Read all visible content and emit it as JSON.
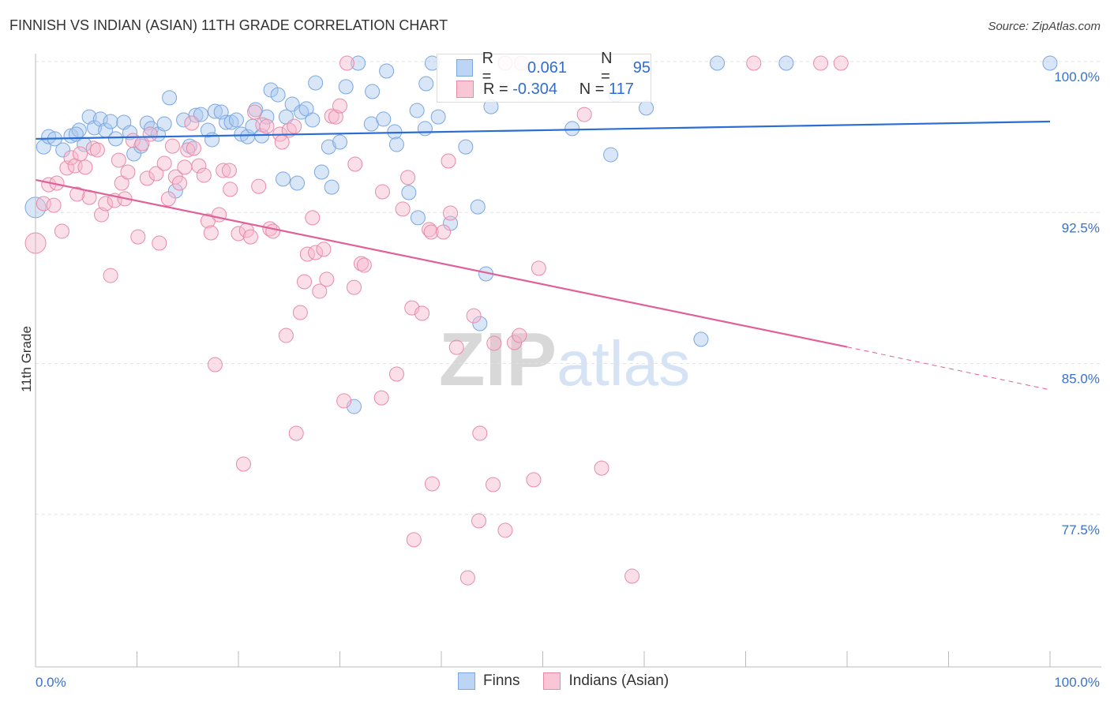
{
  "chart_data": {
    "type": "scatter",
    "title": "FINNISH VS INDIAN (ASIAN) 11TH GRADE CORRELATION CHART",
    "source": "Source: ZipAtlas.com",
    "xlabel": "",
    "ylabel": "11th Grade",
    "xlim": [
      0,
      100
    ],
    "ylim": [
      71.5,
      100.4
    ],
    "x_tick_labels": [
      "0.0%",
      "100.0%"
    ],
    "y_ticks": [
      100,
      92.5,
      85,
      77.5
    ],
    "y_tick_labels": [
      "100.0%",
      "92.5%",
      "85.0%",
      "77.5%"
    ],
    "watermark": "ZIPatlas",
    "legend": [
      {
        "name": "Finns",
        "r_label": "R =",
        "r": "0.061",
        "n_label": "N =",
        "n": "95",
        "color": "#a9c8f0",
        "stroke": "#7aa7e0"
      },
      {
        "name": "Indians (Asian)",
        "r_label": "R =",
        "r": "-0.304",
        "n_label": "N =",
        "n": "117",
        "color": "#f6b8cb",
        "stroke": "#e88aa8"
      }
    ],
    "series": [
      {
        "name": "Finns",
        "color": "#7aa7e0",
        "trend": {
          "x": [
            0,
            100
          ],
          "y": [
            96.16,
            97.02
          ],
          "color": "#2a6dd3"
        },
        "points": [
          [
            0.8,
            95.76
          ],
          [
            1.3,
            96.27
          ],
          [
            1.9,
            96.16
          ],
          [
            2.7,
            95.61
          ],
          [
            3.5,
            96.31
          ],
          [
            4.3,
            96.59
          ],
          [
            4.0,
            96.39
          ],
          [
            4.8,
            95.88
          ],
          [
            5.3,
            97.25
          ],
          [
            5.8,
            96.71
          ],
          [
            6.4,
            97.14
          ],
          [
            6.9,
            96.59
          ],
          [
            7.4,
            97.02
          ],
          [
            7.9,
            96.16
          ],
          [
            8.7,
            96.98
          ],
          [
            9.3,
            96.47
          ],
          [
            9.7,
            95.41
          ],
          [
            10.4,
            95.8
          ],
          [
            11.0,
            96.94
          ],
          [
            11.4,
            96.67
          ],
          [
            12.1,
            96.39
          ],
          [
            12.7,
            96.9
          ],
          [
            13.2,
            98.2
          ],
          [
            13.8,
            93.57
          ],
          [
            14.6,
            97.1
          ],
          [
            15.2,
            95.8
          ],
          [
            15.8,
            97.33
          ],
          [
            16.3,
            97.37
          ],
          [
            17.0,
            96.59
          ],
          [
            17.4,
            96.12
          ],
          [
            17.7,
            97.53
          ],
          [
            18.3,
            97.49
          ],
          [
            18.8,
            96.98
          ],
          [
            19.3,
            96.98
          ],
          [
            19.8,
            97.1
          ],
          [
            20.3,
            96.39
          ],
          [
            20.9,
            96.27
          ],
          [
            21.4,
            96.78
          ],
          [
            21.7,
            97.61
          ],
          [
            22.3,
            96.31
          ],
          [
            22.8,
            97.25
          ],
          [
            23.2,
            98.59
          ],
          [
            23.9,
            98.35
          ],
          [
            24.4,
            94.16
          ],
          [
            24.7,
            97.25
          ],
          [
            25.3,
            97.88
          ],
          [
            25.8,
            93.96
          ],
          [
            26.2,
            97.49
          ],
          [
            26.7,
            97.65
          ],
          [
            27.3,
            97.1
          ],
          [
            27.6,
            98.94
          ],
          [
            28.2,
            94.51
          ],
          [
            28.9,
            95.76
          ],
          [
            29.2,
            93.76
          ],
          [
            30.0,
            96.0
          ],
          [
            30.6,
            98.75
          ],
          [
            31.4,
            82.86
          ],
          [
            31.8,
            99.92
          ],
          [
            33.1,
            96.9
          ],
          [
            33.2,
            98.51
          ],
          [
            34.3,
            97.14
          ],
          [
            34.6,
            99.53
          ],
          [
            35.4,
            96.51
          ],
          [
            35.6,
            95.88
          ],
          [
            36.8,
            93.49
          ],
          [
            37.6,
            97.57
          ],
          [
            37.7,
            92.24
          ],
          [
            38.4,
            96.67
          ],
          [
            38.5,
            98.9
          ],
          [
            39.1,
            99.92
          ],
          [
            39.7,
            97.25
          ],
          [
            40.9,
            91.96
          ],
          [
            42.4,
            95.76
          ],
          [
            43.6,
            92.78
          ],
          [
            43.8,
            86.98
          ],
          [
            44.4,
            89.45
          ],
          [
            44.9,
            97.76
          ],
          [
            52.9,
            96.67
          ],
          [
            56.7,
            95.37
          ],
          [
            57.2,
            98.35
          ],
          [
            60.2,
            97.69
          ],
          [
            65.6,
            86.2
          ],
          [
            67.2,
            99.92
          ],
          [
            74.0,
            99.92
          ],
          [
            100,
            99.92
          ],
          [
            0,
            92.75
          ]
        ]
      },
      {
        "name": "Indians (Asian)",
        "color": "#e88aa8",
        "trend": {
          "x": [
            0,
            80
          ],
          "y": [
            94.12,
            85.82
          ],
          "dashed_to": [
            100,
            83.69
          ],
          "color": "#e0609a"
        },
        "points": [
          [
            0,
            90.98
          ],
          [
            0.8,
            92.94
          ],
          [
            1.3,
            93.88
          ],
          [
            1.8,
            92.86
          ],
          [
            2.1,
            93.96
          ],
          [
            2.6,
            91.57
          ],
          [
            3.1,
            94.71
          ],
          [
            3.5,
            95.22
          ],
          [
            3.9,
            94.82
          ],
          [
            4.4,
            95.41
          ],
          [
            4.9,
            94.75
          ],
          [
            5.3,
            93.25
          ],
          [
            4.1,
            93.41
          ],
          [
            5.7,
            95.69
          ],
          [
            6.1,
            95.61
          ],
          [
            6.5,
            92.39
          ],
          [
            6.9,
            92.94
          ],
          [
            7.4,
            89.37
          ],
          [
            7.8,
            93.1
          ],
          [
            8.2,
            95.1
          ],
          [
            8.5,
            93.96
          ],
          [
            8.8,
            93.18
          ],
          [
            9.1,
            94.51
          ],
          [
            9.6,
            96.08
          ],
          [
            10.1,
            91.29
          ],
          [
            10.5,
            95.92
          ],
          [
            11.0,
            94.2
          ],
          [
            11.3,
            96.39
          ],
          [
            11.9,
            94.43
          ],
          [
            12.2,
            90.98
          ],
          [
            12.7,
            94.94
          ],
          [
            13.1,
            93.18
          ],
          [
            13.5,
            95.8
          ],
          [
            13.8,
            94.27
          ],
          [
            14.2,
            93.96
          ],
          [
            14.7,
            94.75
          ],
          [
            15.0,
            95.61
          ],
          [
            15.4,
            96.94
          ],
          [
            15.6,
            95.69
          ],
          [
            16.1,
            94.82
          ],
          [
            16.6,
            94.35
          ],
          [
            17.0,
            92.08
          ],
          [
            17.3,
            91.49
          ],
          [
            17.7,
            84.94
          ],
          [
            18.1,
            92.39
          ],
          [
            18.5,
            94.59
          ],
          [
            19.1,
            94.59
          ],
          [
            19.2,
            93.65
          ],
          [
            20.0,
            91.45
          ],
          [
            20.5,
            80.0
          ],
          [
            20.8,
            91.61
          ],
          [
            21.2,
            91.29
          ],
          [
            21.6,
            97.49
          ],
          [
            22.0,
            93.8
          ],
          [
            22.4,
            96.86
          ],
          [
            22.8,
            96.78
          ],
          [
            23.1,
            91.69
          ],
          [
            23.4,
            91.57
          ],
          [
            24.1,
            96.39
          ],
          [
            24.3,
            96.0
          ],
          [
            24.7,
            86.39
          ],
          [
            25.0,
            96.59
          ],
          [
            25.5,
            96.78
          ],
          [
            25.7,
            81.53
          ],
          [
            26.1,
            87.53
          ],
          [
            26.5,
            89.06
          ],
          [
            26.8,
            90.43
          ],
          [
            27.3,
            92.24
          ],
          [
            27.6,
            90.51
          ],
          [
            28.0,
            88.59
          ],
          [
            28.4,
            90.67
          ],
          [
            28.7,
            89.18
          ],
          [
            29.2,
            97.29
          ],
          [
            29.6,
            97.25
          ],
          [
            30.0,
            97.8
          ],
          [
            30.4,
            83.14
          ],
          [
            30.7,
            99.92
          ],
          [
            31.4,
            88.78
          ],
          [
            31.5,
            94.9
          ],
          [
            32.1,
            89.96
          ],
          [
            32.4,
            89.88
          ],
          [
            34.1,
            83.29
          ],
          [
            34.2,
            93.53
          ],
          [
            35.6,
            84.47
          ],
          [
            36.2,
            92.67
          ],
          [
            36.7,
            94.24
          ],
          [
            37.1,
            87.76
          ],
          [
            37.3,
            76.24
          ],
          [
            38.1,
            87.49
          ],
          [
            38.8,
            91.65
          ],
          [
            39.0,
            91.53
          ],
          [
            39.1,
            79.02
          ],
          [
            40.2,
            91.53
          ],
          [
            40.7,
            95.06
          ],
          [
            40.9,
            92.47
          ],
          [
            41.5,
            85.8
          ],
          [
            42.6,
            74.35
          ],
          [
            43.2,
            87.37
          ],
          [
            43.7,
            77.18
          ],
          [
            43.8,
            81.53
          ],
          [
            45.1,
            78.98
          ],
          [
            45.2,
            86.0
          ],
          [
            46.3,
            76.71
          ],
          [
            47.2,
            86.04
          ],
          [
            47.7,
            86.39
          ],
          [
            49.1,
            79.22
          ],
          [
            49.6,
            89.73
          ],
          [
            54.1,
            97.37
          ],
          [
            55.8,
            79.8
          ],
          [
            58.8,
            74.43
          ],
          [
            70.8,
            99.92
          ],
          [
            77.4,
            99.92
          ],
          [
            79.4,
            99.92
          ],
          [
            46.3,
            99.92
          ],
          [
            47.9,
            99.92
          ]
        ]
      }
    ]
  }
}
